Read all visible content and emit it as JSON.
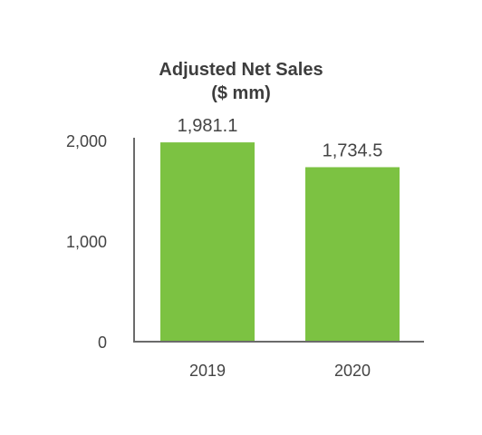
{
  "chart_data": {
    "type": "bar",
    "title": "Adjusted Net Sales",
    "subtitle": "($ mm)",
    "categories": [
      "2019",
      "2020"
    ],
    "values": [
      1981.1,
      1734.5
    ],
    "data_labels": [
      "1,981.1",
      "1,734.5"
    ],
    "y_ticks": [
      0,
      1000,
      2000
    ],
    "y_tick_labels": [
      "0",
      "1,000",
      "2,000"
    ],
    "ylim": [
      0,
      2000
    ],
    "xlabel": "",
    "ylabel": "",
    "grid": false,
    "legend": "none",
    "bar_color": "#7cc242",
    "axis_color": "#6b6b6b"
  }
}
